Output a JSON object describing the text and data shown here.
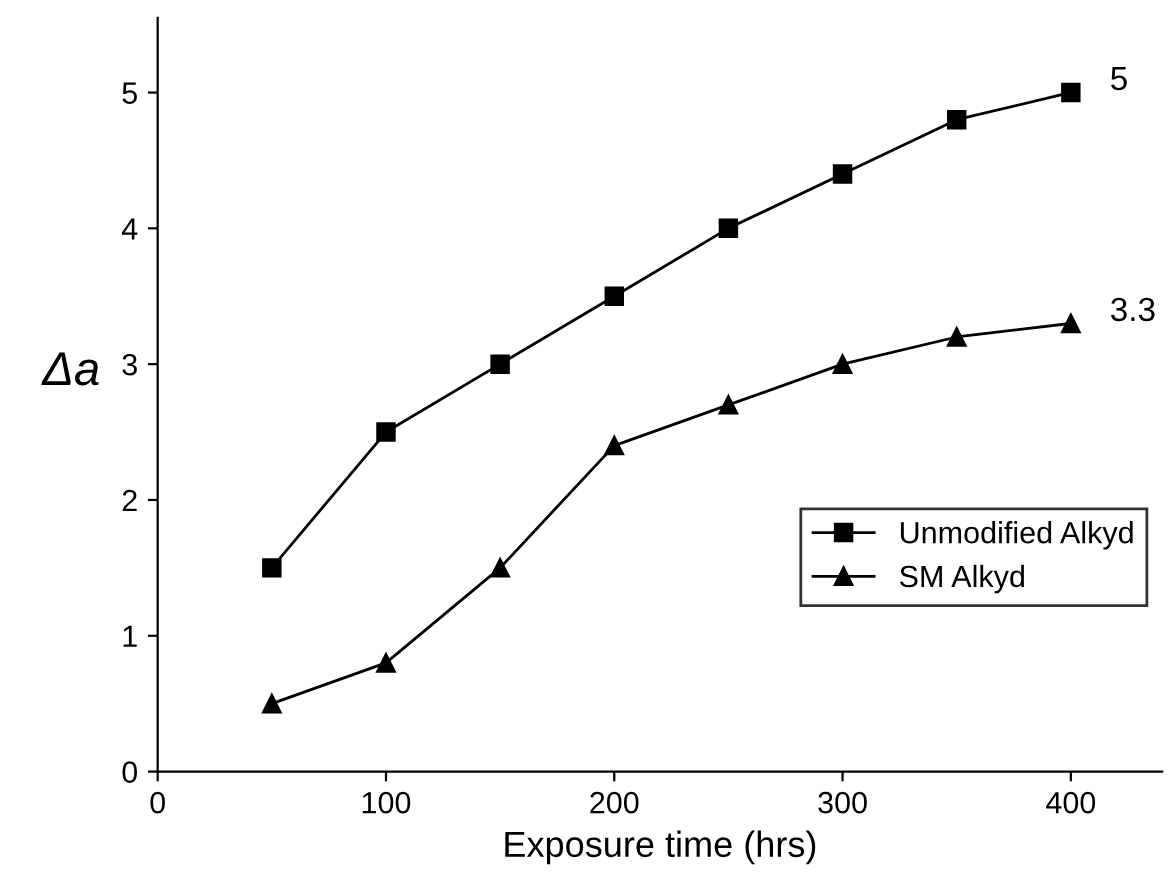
{
  "chart_data": {
    "type": "line",
    "xlabel": "Exposure time (hrs)",
    "ylabel": "Δa",
    "x": [
      50,
      100,
      150,
      200,
      250,
      300,
      350,
      400
    ],
    "series": [
      {
        "name": "Unmodified Alkyd",
        "color": "#000000",
        "marker": "square",
        "values": [
          1.5,
          2.5,
          3.0,
          3.5,
          4.0,
          4.4,
          4.8,
          5.0
        ]
      },
      {
        "name": "SM Alkyd",
        "color": "#000000",
        "marker": "triangle",
        "values": [
          0.5,
          0.8,
          1.5,
          2.4,
          2.7,
          3.0,
          3.2,
          3.3
        ]
      }
    ],
    "xlim": [
      0,
      440
    ],
    "ylim": [
      0,
      5.55
    ],
    "xticks": [
      0,
      100,
      200,
      300,
      400
    ],
    "yticks": [
      0,
      1,
      2,
      3,
      4,
      5
    ],
    "annotations": [
      {
        "text": "5",
        "x": 400,
        "y": 5.0
      },
      {
        "text": "3.3",
        "x": 400,
        "y": 3.3
      }
    ],
    "legend": "bottom right",
    "grid": false,
    "line_style": "solid"
  }
}
